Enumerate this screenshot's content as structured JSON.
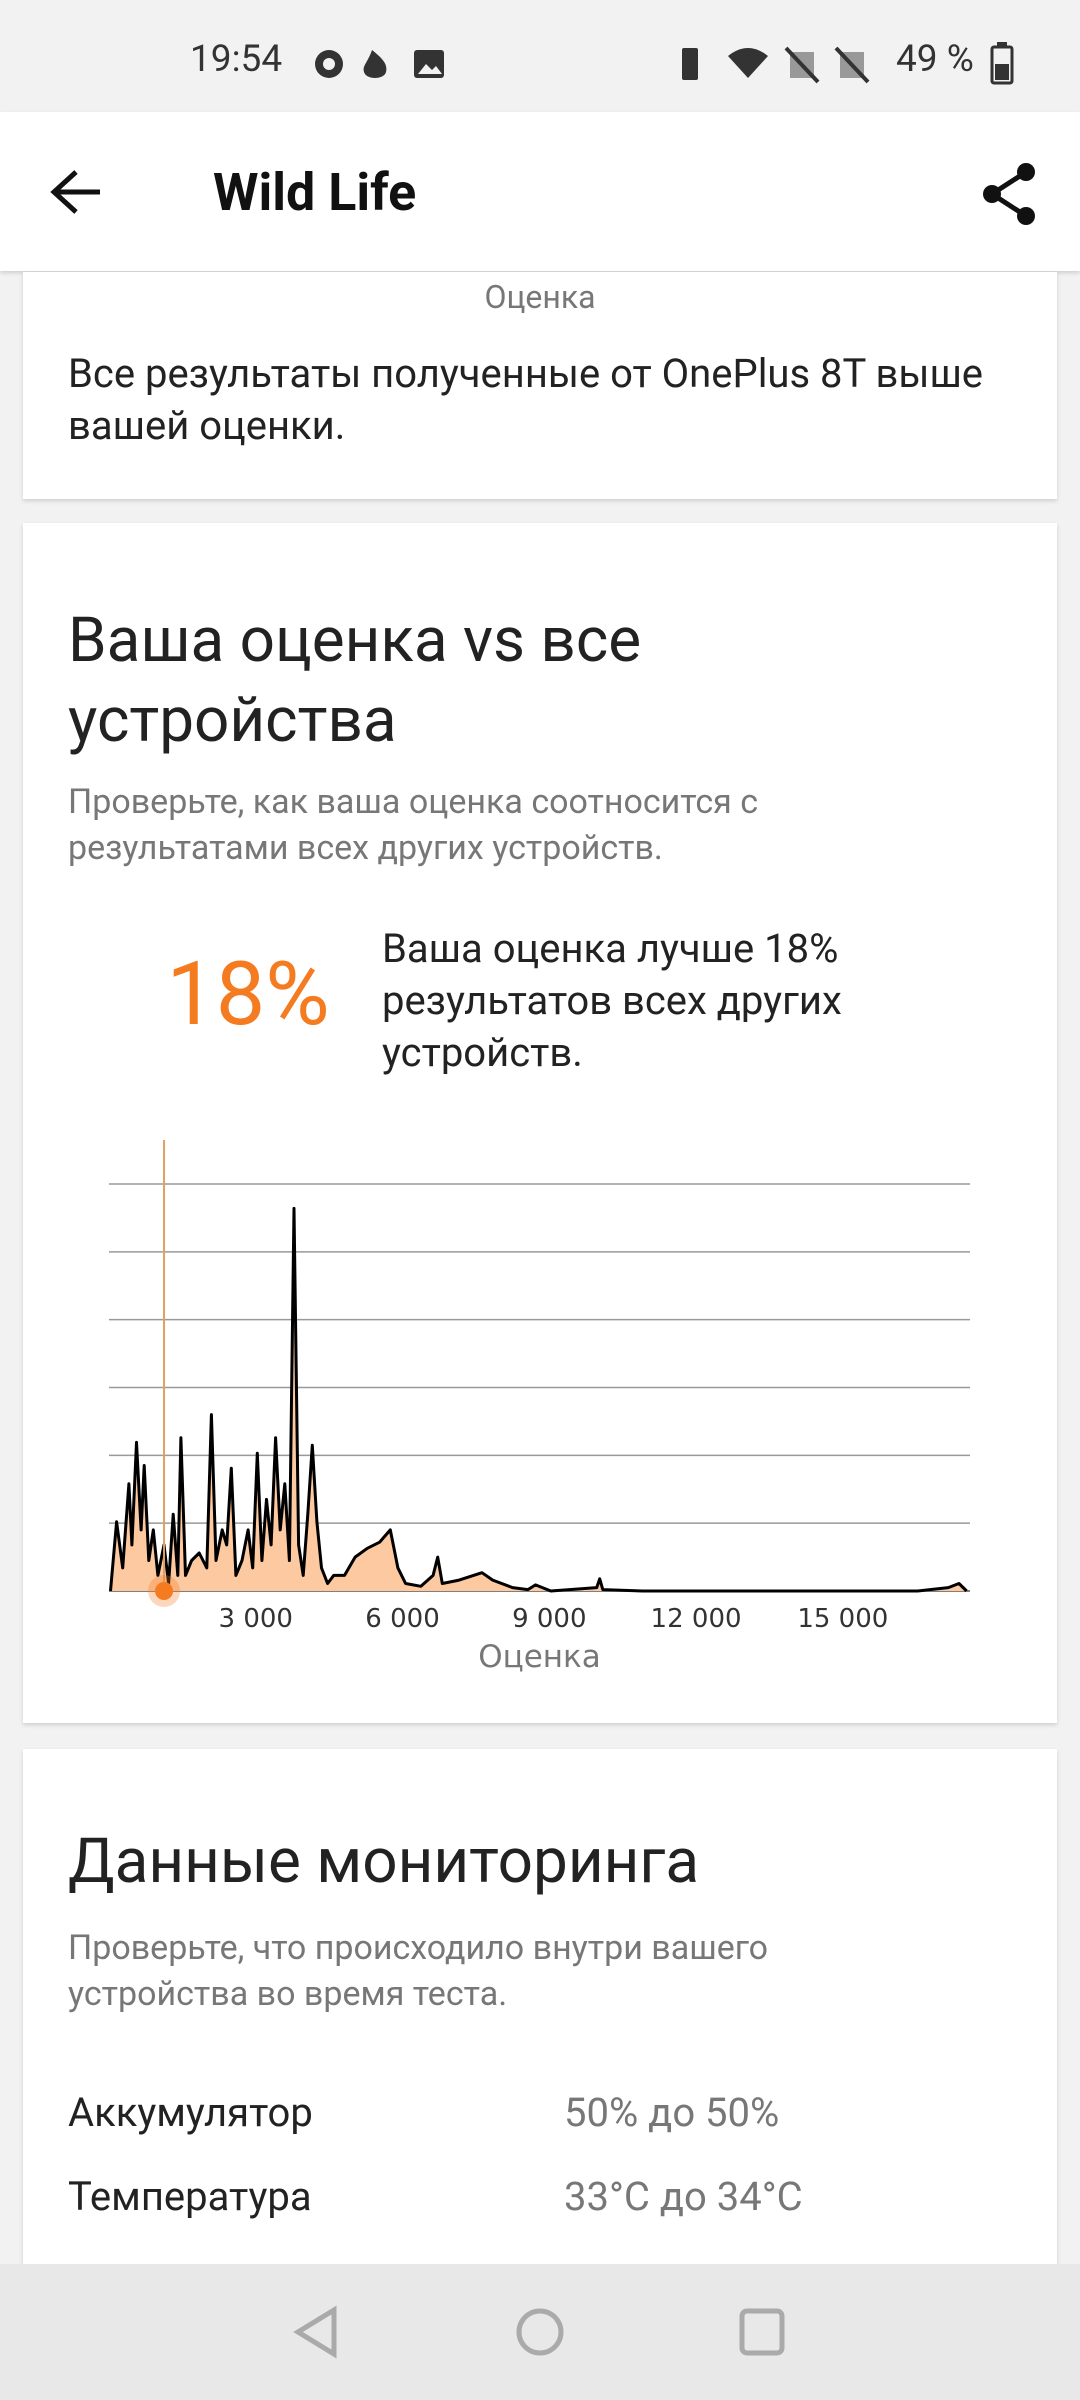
{
  "status_bar": {
    "time": "19:54",
    "battery": "49 %"
  },
  "app_bar": {
    "title": "Wild Life"
  },
  "score_card": {
    "axis_label": "Оценка",
    "text": "Все результаты полученные от OnePlus 8T выше вашей оценки."
  },
  "comparison": {
    "title": "Ваша оценка vs все устройства",
    "subtitle": "Проверьте, как ваша оценка соотносится с результатами всех других устройств.",
    "percent": "18%",
    "description": "Ваша оценка лучше 18% результатов всех других устройств.",
    "chart": {
      "type": "area",
      "xlabel": "Оценка",
      "color": "#fcc9a0",
      "line_color": "#000000",
      "marker_color": "#f47b20",
      "marker_x": 1125,
      "x": [
        31,
        156,
        281,
        406,
        469,
        563,
        656,
        719,
        813,
        906,
        1000,
        1125,
        1219,
        1313,
        1406,
        1469,
        1563,
        1688,
        1844,
        2000,
        2094,
        2188,
        2313,
        2406,
        2500,
        2594,
        2719,
        2844,
        2938,
        3031,
        3125,
        3219,
        3313,
        3406,
        3500,
        3594,
        3688,
        3781,
        3875,
        3969,
        4063,
        4156,
        4250,
        4344,
        4469,
        4594,
        4813,
        5031,
        5281,
        5531,
        5750,
        5906,
        6063,
        6375,
        6625,
        6719,
        6813,
        7156,
        7625,
        7844,
        8250,
        8563,
        8719,
        9031,
        9969,
        10031,
        10094,
        10906,
        16531,
        17156,
        17375,
        17531
      ],
      "values": [
        0,
        1.02,
        0.34,
        1.58,
        0.68,
        2.19,
        0.9,
        1.85,
        0.45,
        0.9,
        0.23,
        0.68,
        0.11,
        1.13,
        0.23,
        2.26,
        0.23,
        0.45,
        0.56,
        0.34,
        2.6,
        0.45,
        0.9,
        0.68,
        1.81,
        0.23,
        0.45,
        0.9,
        0.34,
        2.03,
        0.45,
        1.35,
        0.68,
        2.26,
        0.9,
        1.58,
        0.45,
        5.64,
        0.68,
        0.23,
        1.13,
        2.15,
        1.02,
        0.34,
        0.11,
        0.23,
        0.23,
        0.5,
        0.63,
        0.72,
        0.9,
        0.34,
        0.11,
        0.07,
        0.23,
        0.5,
        0.11,
        0.16,
        0.27,
        0.16,
        0.05,
        0.02,
        0.09,
        0,
        0.05,
        0.18,
        0.02,
        0,
        0,
        0.05,
        0.11,
        0
      ],
      "xlim": [
        0,
        17600
      ],
      "ylim": [
        0,
        6
      ],
      "xticks": [
        {
          "value": 3000,
          "label": "3 000"
        },
        {
          "value": 6000,
          "label": "6 000"
        },
        {
          "value": 9000,
          "label": "9 000"
        },
        {
          "value": 12000,
          "label": "12 000"
        },
        {
          "value": 15000,
          "label": "15 000"
        }
      ],
      "yticks": [
        0,
        1,
        2,
        3,
        4,
        5,
        6
      ],
      "grid": true
    }
  },
  "monitoring": {
    "title": "Данные мониторинга",
    "subtitle": "Проверьте, что происходило внутри вашего устройства во время теста.",
    "rows": [
      [
        "Аккумулятор",
        "50% до 50%"
      ],
      [
        "Температура",
        "33°C до 34°C"
      ]
    ]
  }
}
